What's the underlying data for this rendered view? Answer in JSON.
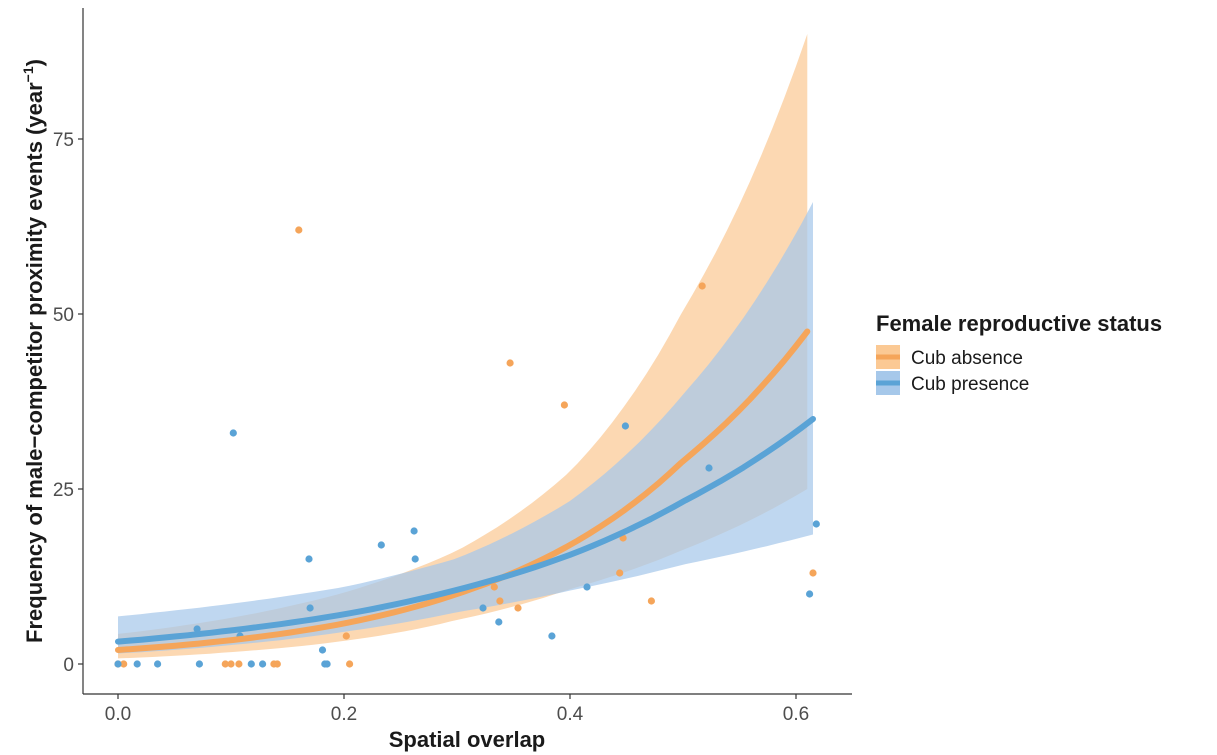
{
  "chart_data": {
    "type": "scatter",
    "title": "",
    "xlabel": "Spatial overlap",
    "ylabel": "Frequency of male−competitor proximity events (year",
    "ylabel_superscript": "−1",
    "ylabel_suffix": ")",
    "xlim": [
      -0.03,
      0.65
    ],
    "ylim": [
      -4.5,
      94
    ],
    "x_ticks": [
      0.0,
      0.2,
      0.4,
      0.6
    ],
    "x_tick_labels": [
      "0.0",
      "0.2",
      "0.4",
      "0.6"
    ],
    "y_ticks": [
      0,
      25,
      50,
      75
    ],
    "y_tick_labels": [
      "0",
      "25",
      "50",
      "75"
    ],
    "grid": false,
    "legend": {
      "title": "Female reproductive status",
      "placement": "right"
    },
    "series": [
      {
        "name": "Cub absence",
        "color": "#f5a55a",
        "band_color": "#fbc994",
        "points": [
          {
            "x": 0.0,
            "y": 0
          },
          {
            "x": 0.005,
            "y": 0
          },
          {
            "x": 0.095,
            "y": 0
          },
          {
            "x": 0.1,
            "y": 0
          },
          {
            "x": 0.107,
            "y": 0
          },
          {
            "x": 0.138,
            "y": 0
          },
          {
            "x": 0.141,
            "y": 0
          },
          {
            "x": 0.205,
            "y": 0
          },
          {
            "x": 0.202,
            "y": 4
          },
          {
            "x": 0.16,
            "y": 62
          },
          {
            "x": 0.333,
            "y": 11
          },
          {
            "x": 0.338,
            "y": 9
          },
          {
            "x": 0.354,
            "y": 8
          },
          {
            "x": 0.347,
            "y": 43
          },
          {
            "x": 0.395,
            "y": 37
          },
          {
            "x": 0.444,
            "y": 13
          },
          {
            "x": 0.447,
            "y": 18
          },
          {
            "x": 0.472,
            "y": 9
          },
          {
            "x": 0.517,
            "y": 54
          },
          {
            "x": 0.615,
            "y": 13
          }
        ],
        "fit": [
          {
            "x": 0.0,
            "y": 2.0,
            "lo": 0.8,
            "hi": 4.3
          },
          {
            "x": 0.1,
            "y": 3.4,
            "lo": 1.7,
            "hi": 6.6
          },
          {
            "x": 0.2,
            "y": 5.8,
            "lo": 3.3,
            "hi": 10.2
          },
          {
            "x": 0.3,
            "y": 10.0,
            "lo": 6.3,
            "hi": 16.2
          },
          {
            "x": 0.4,
            "y": 17.0,
            "lo": 10.7,
            "hi": 27.5
          },
          {
            "x": 0.5,
            "y": 29.0,
            "lo": 16.3,
            "hi": 50.5
          },
          {
            "x": 0.61,
            "y": 47.5,
            "lo": 25.0,
            "hi": 90.0
          }
        ]
      },
      {
        "name": "Cub presence",
        "color": "#5aa3d6",
        "band_color": "#a6c8ea",
        "points": [
          {
            "x": 0.0,
            "y": 0
          },
          {
            "x": 0.017,
            "y": 0
          },
          {
            "x": 0.035,
            "y": 0
          },
          {
            "x": 0.072,
            "y": 0
          },
          {
            "x": 0.118,
            "y": 0
          },
          {
            "x": 0.128,
            "y": 0
          },
          {
            "x": 0.183,
            "y": 0
          },
          {
            "x": 0.185,
            "y": 0
          },
          {
            "x": 0.181,
            "y": 2
          },
          {
            "x": 0.07,
            "y": 5
          },
          {
            "x": 0.108,
            "y": 4
          },
          {
            "x": 0.102,
            "y": 33
          },
          {
            "x": 0.17,
            "y": 8
          },
          {
            "x": 0.169,
            "y": 15
          },
          {
            "x": 0.233,
            "y": 17
          },
          {
            "x": 0.262,
            "y": 19
          },
          {
            "x": 0.263,
            "y": 15
          },
          {
            "x": 0.323,
            "y": 8
          },
          {
            "x": 0.337,
            "y": 6
          },
          {
            "x": 0.384,
            "y": 4
          },
          {
            "x": 0.415,
            "y": 11
          },
          {
            "x": 0.449,
            "y": 34
          },
          {
            "x": 0.523,
            "y": 28
          },
          {
            "x": 0.612,
            "y": 10
          },
          {
            "x": 0.618,
            "y": 20
          }
        ],
        "fit": [
          {
            "x": 0.0,
            "y": 3.2,
            "lo": 1.5,
            "hi": 6.8
          },
          {
            "x": 0.1,
            "y": 4.8,
            "lo": 2.7,
            "hi": 8.6
          },
          {
            "x": 0.2,
            "y": 7.1,
            "lo": 4.6,
            "hi": 11.0
          },
          {
            "x": 0.3,
            "y": 10.6,
            "lo": 7.4,
            "hi": 15.1
          },
          {
            "x": 0.4,
            "y": 15.6,
            "lo": 10.5,
            "hi": 23.3
          },
          {
            "x": 0.5,
            "y": 23.2,
            "lo": 14.2,
            "hi": 38.5
          },
          {
            "x": 0.615,
            "y": 35.0,
            "lo": 18.5,
            "hi": 66.0
          }
        ]
      }
    ]
  }
}
